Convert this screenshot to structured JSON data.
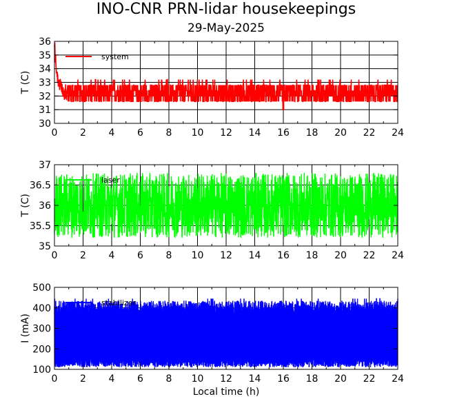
{
  "title": "INO-CNR PRN-lidar housekeepings",
  "subtitle": "29-May-2025",
  "chart_data": [
    {
      "type": "line",
      "ylabel": "T (C)",
      "xlabel": "",
      "xlim": [
        0,
        24
      ],
      "ylim": [
        30,
        36
      ],
      "x_ticks": [
        "0",
        "2",
        "4",
        "6",
        "8",
        "10",
        "12",
        "14",
        "16",
        "18",
        "20",
        "22",
        "24"
      ],
      "y_ticks": [
        "30",
        "31",
        "32",
        "33",
        "34",
        "35",
        "36"
      ],
      "grid": true,
      "legend_position": "top-left",
      "series": [
        {
          "name": "system",
          "color": "#ff0000",
          "baseline": 32.2,
          "spread": 0.7,
          "start_peak": 35.8,
          "min": 31.0
        }
      ]
    },
    {
      "type": "line",
      "ylabel": "T (C)",
      "xlabel": "",
      "xlim": [
        0,
        24
      ],
      "ylim": [
        35,
        37
      ],
      "x_ticks": [
        "0",
        "2",
        "4",
        "6",
        "8",
        "10",
        "12",
        "14",
        "16",
        "18",
        "20",
        "22",
        "24"
      ],
      "y_ticks": [
        "35",
        "35.5",
        "36",
        "36.5",
        "37"
      ],
      "grid": true,
      "legend_position": "top-left",
      "series": [
        {
          "name": "laser",
          "color": "#00ff00",
          "baseline": 36.0,
          "spread": 0.8,
          "min": 35.2,
          "max": 36.8
        }
      ]
    },
    {
      "type": "line",
      "ylabel": "I (mA)",
      "xlabel": "Local time (h)",
      "xlim": [
        0,
        24
      ],
      "ylim": [
        100,
        500
      ],
      "x_ticks": [
        "0",
        "2",
        "4",
        "6",
        "8",
        "10",
        "12",
        "14",
        "16",
        "18",
        "20",
        "22",
        "24"
      ],
      "y_ticks": [
        "100",
        "200",
        "300",
        "400",
        "500"
      ],
      "grid": true,
      "legend_position": "top-left",
      "series": [
        {
          "name": "stabilizer",
          "color": "#0000ff",
          "baseline": 270,
          "spread": 150,
          "min": 110,
          "max": 445
        }
      ]
    }
  ]
}
